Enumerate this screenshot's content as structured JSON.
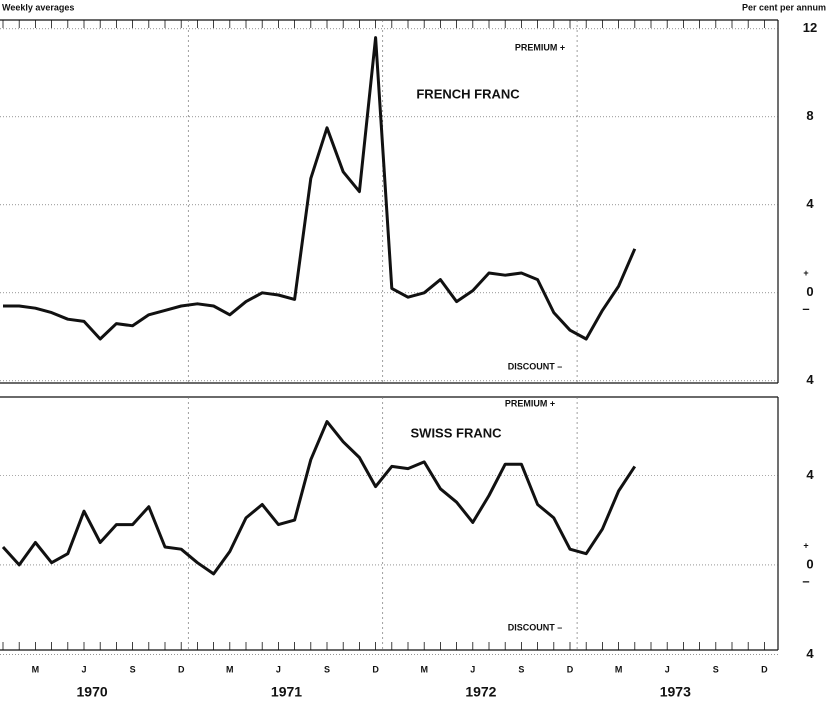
{
  "header": {
    "left": "Weekly averages",
    "right": "Per cent per annum"
  },
  "x_axis": {
    "categories": [
      null,
      null,
      "M",
      null,
      null,
      "J",
      null,
      null,
      "S",
      null,
      null,
      "D",
      null,
      null,
      "M",
      null,
      null,
      "J",
      null,
      null,
      "S",
      null,
      null,
      "D",
      null,
      null,
      "M",
      null,
      null,
      "J",
      null,
      null,
      "S",
      null,
      null,
      "D",
      null,
      null,
      "M",
      null,
      null,
      "J",
      null,
      null,
      "S",
      null,
      null,
      "D"
    ],
    "years": [
      "1970",
      "1971",
      "1972",
      "1973"
    ]
  },
  "chart_data": [
    {
      "type": "line",
      "title": "FRENCH FRANC",
      "premium_label": "PREMIUM +",
      "discount_label": "DISCOUNT –",
      "zero_signs": [
        "+",
        "–"
      ],
      "color": "#111111",
      "values": [
        -0.6,
        -0.6,
        -0.7,
        -0.9,
        -1.2,
        -1.3,
        -2.1,
        -1.4,
        -1.5,
        -1.0,
        -0.8,
        -0.6,
        -0.5,
        -0.6,
        -1.0,
        -0.4,
        0,
        -0.1,
        -0.3,
        5.2,
        7.5,
        5.5,
        4.6,
        11.6,
        0.2,
        -0.2,
        0,
        0.6,
        -0.4,
        0.1,
        0.9,
        0.8,
        0.9,
        0.6,
        -0.9,
        -1.7,
        -2.1,
        -0.8,
        0.3,
        2.0,
        null,
        null,
        null,
        null,
        null,
        null,
        null,
        null
      ],
      "ylim": [
        -4.1,
        12.4
      ],
      "yticks": [
        {
          "value": -4,
          "label": "4"
        },
        0,
        4,
        8,
        12
      ]
    },
    {
      "type": "line",
      "title": "SWISS FRANC",
      "premium_label": "PREMIUM +",
      "discount_label": "DISCOUNT –",
      "zero_signs": [
        "+",
        "–"
      ],
      "color": "#111111",
      "values": [
        0.8,
        0,
        1.0,
        0.1,
        0.5,
        2.4,
        1.0,
        1.8,
        1.8,
        2.6,
        0.8,
        0.7,
        0.1,
        -0.4,
        0.6,
        2.1,
        2.7,
        1.8,
        2.0,
        4.7,
        6.4,
        5.5,
        4.8,
        3.5,
        4.4,
        4.3,
        4.6,
        3.4,
        2.8,
        1.9,
        3.1,
        4.5,
        4.5,
        2.7,
        2.1,
        0.7,
        0.5,
        1.6,
        3.3,
        4.4,
        null,
        null,
        null,
        null,
        null,
        null,
        null,
        null
      ],
      "ylim": [
        -3.8,
        7.5
      ],
      "yticks": [
        {
          "value": -4,
          "label": "4"
        },
        0,
        4
      ]
    }
  ]
}
